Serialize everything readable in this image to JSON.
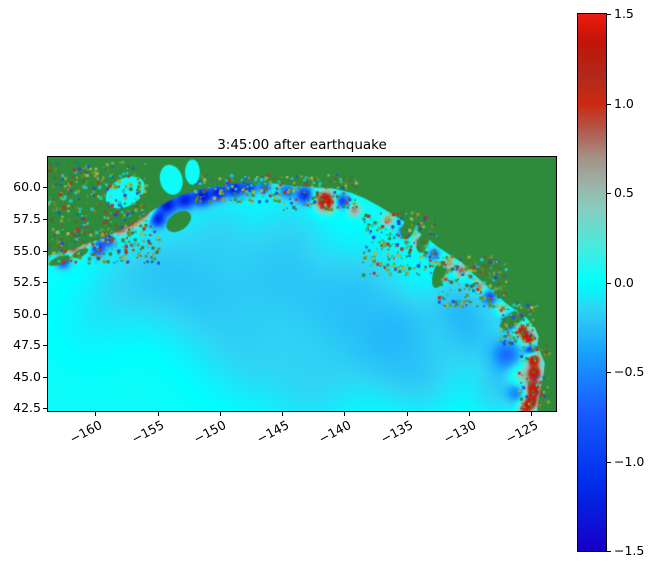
{
  "chart_data": {
    "type": "heatmap",
    "title": "3:45:00 after earthquake",
    "x_tick_labels": [
      "−160",
      "−155",
      "−150",
      "−145",
      "−140",
      "−135",
      "−130",
      "−125"
    ],
    "x_tick_values": [
      -160,
      -155,
      -150,
      -145,
      -140,
      -135,
      -130,
      -125
    ],
    "y_tick_labels": [
      "60.0",
      "57.5",
      "55.0",
      "52.5",
      "50.0",
      "47.5",
      "45.0",
      "42.5"
    ],
    "y_tick_values": [
      60.0,
      57.5,
      55.0,
      52.5,
      50.0,
      47.5,
      45.0,
      42.5
    ],
    "xlim": [
      -163.8,
      -123.0
    ],
    "ylim": [
      42.3,
      62.4
    ],
    "xlabel": "",
    "ylabel": "",
    "colorbar": {
      "vmin": -1.5,
      "vmax": 1.5,
      "tick_labels": [
        "1.5",
        "1.0",
        "0.5",
        "0.0",
        "−0.5",
        "−1.0",
        "−1.5"
      ],
      "tick_values": [
        1.5,
        1.0,
        0.5,
        0.0,
        -0.5,
        -1.0,
        -1.5
      ]
    },
    "colormap_stops": [
      [
        -1.5,
        "#1600c8"
      ],
      [
        -1.1,
        "#0030ee"
      ],
      [
        -0.7,
        "#1a60ff"
      ],
      [
        -0.4,
        "#18a0ff"
      ],
      [
        -0.15,
        "#30d4f4"
      ],
      [
        0.0,
        "#00ffff"
      ],
      [
        0.2,
        "#48ecdf"
      ],
      [
        0.4,
        "#85cfc2"
      ],
      [
        0.55,
        "#9db4aa"
      ],
      [
        0.7,
        "#a39386"
      ],
      [
        0.85,
        "#b25b4e"
      ],
      [
        1.0,
        "#cc2a12"
      ],
      [
        1.15,
        "#b02a1c"
      ],
      [
        1.35,
        "#c41408"
      ],
      [
        1.5,
        "#ec1c10"
      ]
    ],
    "land_color": "#2e8b3c",
    "ocean_base_value": 0.04,
    "wave_blobs": [
      [
        -151.5,
        51.5,
        -0.2,
        3.2
      ],
      [
        -145.5,
        53.5,
        -0.16,
        2.6
      ],
      [
        -141.0,
        50.5,
        -0.2,
        3.0
      ],
      [
        -137.0,
        47.0,
        -0.2,
        2.6
      ],
      [
        -133.5,
        44.8,
        -0.16,
        2.2
      ],
      [
        -147.5,
        46.5,
        -0.15,
        3.0
      ],
      [
        -142.5,
        43.8,
        -0.13,
        2.4
      ],
      [
        -129.5,
        48.5,
        -0.24,
        2.0
      ],
      [
        -131.0,
        51.0,
        -0.18,
        1.6
      ],
      [
        -155.0,
        54.0,
        -0.13,
        2.5
      ],
      [
        -150.0,
        57.0,
        -0.11,
        2.0
      ],
      [
        -144.0,
        57.0,
        -0.1,
        2.0
      ],
      [
        -138.0,
        53.0,
        -0.11,
        2.2
      ],
      [
        -135.0,
        49.5,
        -0.13,
        1.8
      ],
      [
        -126.8,
        45.5,
        -0.18,
        1.4
      ],
      [
        -128.0,
        43.5,
        -0.13,
        1.4
      ],
      [
        -158.0,
        52.0,
        -0.1,
        2.2
      ],
      [
        -160.5,
        49.0,
        -0.08,
        2.5
      ],
      [
        -161.8,
        55.2,
        0.9,
        0.4
      ],
      [
        -160.8,
        55.9,
        1.2,
        0.45
      ],
      [
        -159.8,
        55.2,
        -1.0,
        0.4
      ],
      [
        -158.9,
        55.9,
        -0.9,
        0.4
      ],
      [
        -158.3,
        56.9,
        1.3,
        0.5
      ],
      [
        -157.2,
        57.6,
        1.5,
        0.55
      ],
      [
        -156.0,
        58.1,
        1.2,
        0.45
      ],
      [
        -155.0,
        57.5,
        -1.2,
        0.45
      ],
      [
        -154.2,
        58.6,
        -1.3,
        0.5
      ],
      [
        -152.8,
        59.0,
        -1.2,
        0.5
      ],
      [
        -151.4,
        59.3,
        -1.4,
        0.5
      ],
      [
        -150.1,
        59.6,
        -1.2,
        0.45
      ],
      [
        -148.8,
        59.9,
        -1.3,
        0.45
      ],
      [
        -147.6,
        60.0,
        -1.0,
        0.4
      ],
      [
        -146.4,
        60.1,
        -0.8,
        0.35
      ],
      [
        -162.6,
        54.1,
        -0.8,
        0.4
      ],
      [
        -141.5,
        58.9,
        1.5,
        0.55
      ],
      [
        -143.2,
        59.4,
        -1.1,
        0.45
      ],
      [
        -140.2,
        58.9,
        -1.0,
        0.4
      ],
      [
        -139.2,
        58.2,
        0.7,
        0.35
      ],
      [
        -144.6,
        59.7,
        -0.7,
        0.4
      ],
      [
        -136.5,
        57.4,
        0.8,
        0.3
      ],
      [
        -135.2,
        56.5,
        -0.9,
        0.3
      ],
      [
        -134.0,
        55.7,
        0.9,
        0.3
      ],
      [
        -132.8,
        54.7,
        -0.8,
        0.3
      ],
      [
        -131.6,
        54.0,
        0.7,
        0.3
      ],
      [
        -130.6,
        53.4,
        0.9,
        0.35
      ],
      [
        -129.2,
        52.2,
        0.8,
        0.35
      ],
      [
        -128.3,
        51.3,
        -0.8,
        0.35
      ],
      [
        -127.3,
        50.3,
        0.7,
        0.3
      ],
      [
        -126.6,
        49.4,
        -1.3,
        0.4
      ],
      [
        -125.8,
        48.7,
        1.2,
        0.35
      ],
      [
        -125.2,
        48.0,
        1.5,
        0.4
      ],
      [
        -125.0,
        47.2,
        -1.2,
        0.35
      ],
      [
        -124.8,
        46.4,
        1.4,
        0.4
      ],
      [
        -124.7,
        45.3,
        1.3,
        0.4
      ],
      [
        -125.8,
        45.0,
        0.55,
        0.7
      ],
      [
        -124.8,
        44.0,
        1.4,
        0.45
      ],
      [
        -125.0,
        43.0,
        1.2,
        0.4
      ],
      [
        -126.9,
        46.8,
        -0.5,
        0.8
      ],
      [
        -126.1,
        43.8,
        -0.5,
        0.6
      ],
      [
        -125.5,
        42.5,
        0.9,
        0.4
      ]
    ],
    "land_polygon": [
      [
        -163.8,
        54.6
      ],
      [
        -162.8,
        54.8
      ],
      [
        -161.8,
        55.1
      ],
      [
        -160.6,
        55.6
      ],
      [
        -159.4,
        56.0
      ],
      [
        -158.2,
        56.5
      ],
      [
        -157.1,
        57.1
      ],
      [
        -156.1,
        57.7
      ],
      [
        -155.2,
        58.3
      ],
      [
        -154.3,
        58.8
      ],
      [
        -153.4,
        59.3
      ],
      [
        -152.4,
        59.6
      ],
      [
        -151.4,
        59.9
      ],
      [
        -150.2,
        60.1
      ],
      [
        -148.8,
        60.3
      ],
      [
        -147.2,
        60.4
      ],
      [
        -145.6,
        60.3
      ],
      [
        -144.0,
        60.1
      ],
      [
        -142.4,
        60.0
      ],
      [
        -140.9,
        59.9
      ],
      [
        -139.5,
        59.6
      ],
      [
        -138.3,
        59.1
      ],
      [
        -137.2,
        58.5
      ],
      [
        -136.2,
        57.9
      ],
      [
        -135.2,
        57.3
      ],
      [
        -134.3,
        56.7
      ],
      [
        -133.4,
        56.0
      ],
      [
        -132.5,
        55.3
      ],
      [
        -131.6,
        54.7
      ],
      [
        -130.6,
        54.1
      ],
      [
        -129.7,
        53.2
      ],
      [
        -128.8,
        52.4
      ],
      [
        -127.9,
        51.6
      ],
      [
        -127.0,
        50.8
      ],
      [
        -126.1,
        50.2
      ],
      [
        -125.3,
        49.6
      ],
      [
        -124.7,
        48.9
      ],
      [
        -124.4,
        48.2
      ],
      [
        -124.5,
        47.6
      ],
      [
        -124.2,
        46.8
      ],
      [
        -123.9,
        46.1
      ],
      [
        -124.0,
        45.2
      ],
      [
        -124.2,
        44.3
      ],
      [
        -124.4,
        43.3
      ],
      [
        -124.5,
        42.3
      ],
      [
        -123.0,
        42.3
      ],
      [
        -123.0,
        62.4
      ],
      [
        -163.8,
        62.4
      ]
    ],
    "bays": [
      [
        -157.6,
        59.6,
        1.7,
        1.1,
        -30
      ],
      [
        -153.9,
        60.6,
        0.9,
        1.2,
        -15
      ],
      [
        -152.2,
        61.2,
        0.6,
        1.0,
        0
      ]
    ],
    "islands": [
      [
        -153.3,
        57.3,
        1.1,
        0.7,
        -35
      ],
      [
        -162.9,
        54.2,
        0.9,
        0.3,
        -20
      ],
      [
        -161.2,
        54.8,
        0.7,
        0.28,
        -25
      ],
      [
        -134.9,
        56.7,
        0.5,
        0.85,
        20
      ],
      [
        -133.7,
        55.6,
        0.45,
        0.8,
        20
      ],
      [
        -132.4,
        53.1,
        0.5,
        1.1,
        15
      ],
      [
        -126.4,
        49.6,
        1.3,
        0.5,
        -35
      ]
    ],
    "speckle_zones": [
      [
        -163.8,
        54.0,
        9.0,
        3.0,
        260,
        2.5
      ],
      [
        -163.8,
        57.0,
        8.0,
        5.0,
        300,
        2.5
      ],
      [
        -152.0,
        58.8,
        7.0,
        2.2,
        160,
        2.5
      ],
      [
        -145.0,
        58.2,
        6.0,
        2.8,
        140,
        2.2
      ],
      [
        -138.5,
        53.0,
        6.0,
        5.0,
        260,
        2.5
      ],
      [
        -132.5,
        50.5,
        5.5,
        4.0,
        200,
        2.5
      ],
      [
        -127.5,
        47.5,
        3.0,
        3.5,
        120,
        2.2
      ],
      [
        -126.0,
        42.5,
        2.5,
        5.0,
        90,
        2.2
      ]
    ],
    "speckle_palette": [
      "#6b8e23",
      "#556b2f",
      "#8aa33c",
      "#2e8f3a",
      "#c03020",
      "#2050d0",
      "#20c8c8",
      "#a0b850"
    ]
  }
}
